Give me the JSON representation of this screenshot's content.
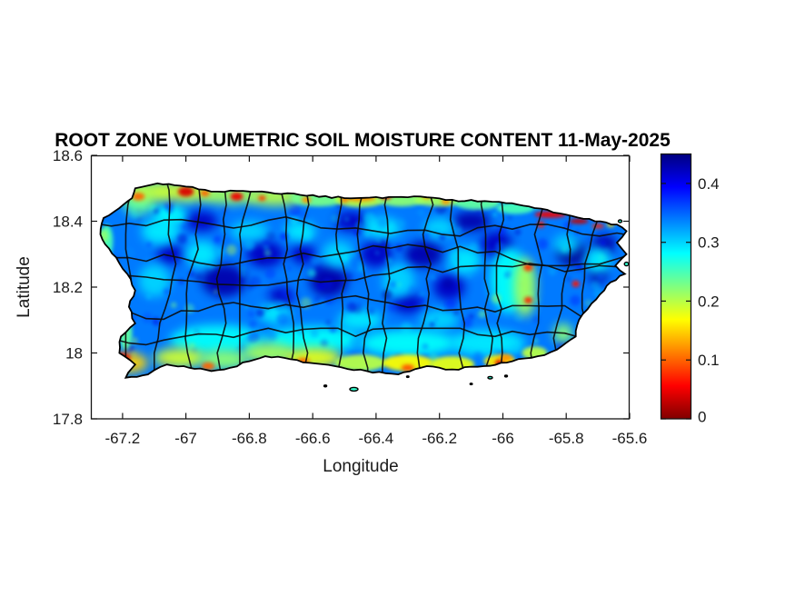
{
  "figure": {
    "background": "#ffffff",
    "text_color": "#1a1a1a",
    "axis_color": "#151515"
  },
  "chart_data": {
    "type": "heatmap",
    "title": "ROOT ZONE VOLUMETRIC SOIL MOISTURE CONTENT 11-May-2025",
    "date_shown": "11-May-2025",
    "xlabel": "Longitude",
    "ylabel": "Latitude",
    "xlim": [
      -67.3,
      -65.6
    ],
    "ylim": [
      17.8,
      18.6
    ],
    "x_ticks": [
      -67.2,
      -67.0,
      -66.8,
      -66.6,
      -66.4,
      -66.2,
      -66.0,
      -65.8,
      -65.6
    ],
    "x_tick_labels": [
      "-67.2",
      "-67",
      "-66.8",
      "-66.6",
      "-66.4",
      "-66.2",
      "-66",
      "-65.8",
      "-65.6"
    ],
    "y_ticks": [
      18.6,
      18.4,
      18.2,
      18.0,
      17.8
    ],
    "y_tick_labels": [
      "18.6",
      "18.4",
      "18.2",
      "18",
      "17.8"
    ],
    "grid": false,
    "legend": "colorbar-right",
    "colorbar": {
      "min": 0,
      "max": 0.45,
      "ticks": [
        0.4,
        0.3,
        0.2,
        0.1,
        0
      ],
      "tick_labels": [
        "0.4",
        "0.3",
        "0.2",
        "0.1",
        "0"
      ],
      "colormap": "jet-reversed (high=dark blue, low=dark red)",
      "stops_top_to_bottom": [
        {
          "offset": 0.0,
          "color": "#000080"
        },
        {
          "offset": 0.125,
          "color": "#0000ff"
        },
        {
          "offset": 0.375,
          "color": "#00ffff"
        },
        {
          "offset": 0.625,
          "color": "#ffff00"
        },
        {
          "offset": 0.875,
          "color": "#ff0000"
        },
        {
          "offset": 1.0,
          "color": "#800000"
        }
      ]
    },
    "map": {
      "region": "Puerto Rico with municipality boundaries",
      "value_summary": "interior 0.30-0.45 (blue), north/south coastal bands 0.15-0.25 (green-yellow), dry hotspots 0.02-0.12 (orange-red) on NW/N coast, NE coast strip, SW corner and S coast",
      "base_value": 0.34,
      "outline": [
        [
          -67.27,
          18.36
        ],
        [
          -67.26,
          18.41
        ],
        [
          -67.21,
          18.44
        ],
        [
          -67.17,
          18.47
        ],
        [
          -67.16,
          18.5
        ],
        [
          -67.09,
          18.515
        ],
        [
          -67.0,
          18.505
        ],
        [
          -66.9,
          18.49
        ],
        [
          -66.78,
          18.49
        ],
        [
          -66.64,
          18.48
        ],
        [
          -66.5,
          18.47
        ],
        [
          -66.38,
          18.47
        ],
        [
          -66.26,
          18.475
        ],
        [
          -66.16,
          18.465
        ],
        [
          -66.08,
          18.46
        ],
        [
          -65.99,
          18.455
        ],
        [
          -65.9,
          18.44
        ],
        [
          -65.8,
          18.42
        ],
        [
          -65.71,
          18.4
        ],
        [
          -65.64,
          18.39
        ],
        [
          -65.61,
          18.37
        ],
        [
          -65.64,
          18.335
        ],
        [
          -65.61,
          18.3
        ],
        [
          -65.645,
          18.265
        ],
        [
          -65.615,
          18.24
        ],
        [
          -65.66,
          18.215
        ],
        [
          -65.68,
          18.19
        ],
        [
          -65.72,
          18.15
        ],
        [
          -65.76,
          18.1
        ],
        [
          -65.77,
          18.05
        ],
        [
          -65.83,
          18.01
        ],
        [
          -65.89,
          17.99
        ],
        [
          -65.97,
          17.975
        ],
        [
          -66.06,
          17.96
        ],
        [
          -66.16,
          17.95
        ],
        [
          -66.24,
          17.96
        ],
        [
          -66.33,
          17.935
        ],
        [
          -66.43,
          17.945
        ],
        [
          -66.53,
          17.96
        ],
        [
          -66.61,
          17.97
        ],
        [
          -66.69,
          17.985
        ],
        [
          -66.75,
          17.99
        ],
        [
          -66.8,
          17.975
        ],
        [
          -66.86,
          17.955
        ],
        [
          -66.92,
          17.945
        ],
        [
          -66.99,
          17.955
        ],
        [
          -67.06,
          17.965
        ],
        [
          -67.12,
          17.935
        ],
        [
          -67.19,
          17.925
        ],
        [
          -67.16,
          17.965
        ],
        [
          -67.21,
          18.0
        ],
        [
          -67.205,
          18.05
        ],
        [
          -67.16,
          18.09
        ],
        [
          -67.18,
          18.14
        ],
        [
          -67.16,
          18.19
        ],
        [
          -67.185,
          18.24
        ],
        [
          -67.22,
          18.29
        ],
        [
          -67.255,
          18.33
        ]
      ],
      "islets": [
        [
          -66.47,
          17.89,
          9,
          4
        ],
        [
          -66.56,
          17.9,
          3,
          2
        ],
        [
          -66.04,
          17.925,
          5,
          2.5
        ],
        [
          -65.99,
          17.93,
          3,
          2
        ],
        [
          -66.1,
          17.906,
          2.5,
          1.5
        ],
        [
          -65.63,
          18.4,
          4,
          3
        ],
        [
          -65.61,
          18.27,
          4.5,
          4
        ],
        [
          -66.3,
          17.928,
          2.5,
          1.5
        ]
      ],
      "features": [
        [
          -66.88,
          18.22,
          0.07,
          0.05,
          0.43
        ],
        [
          -66.75,
          18.3,
          0.06,
          0.04,
          0.42
        ],
        [
          -66.55,
          18.22,
          0.06,
          0.05,
          0.43
        ],
        [
          -66.4,
          18.3,
          0.05,
          0.04,
          0.42
        ],
        [
          -66.25,
          18.3,
          0.06,
          0.04,
          0.43
        ],
        [
          -66.48,
          18.4,
          0.05,
          0.03,
          0.42
        ],
        [
          -66.1,
          18.4,
          0.06,
          0.03,
          0.43
        ],
        [
          -66.02,
          18.33,
          0.05,
          0.04,
          0.42
        ],
        [
          -65.78,
          18.3,
          0.05,
          0.035,
          0.44
        ],
        [
          -65.68,
          18.33,
          0.04,
          0.03,
          0.43
        ],
        [
          -66.95,
          18.4,
          0.05,
          0.03,
          0.42
        ],
        [
          -67.05,
          18.3,
          0.04,
          0.03,
          0.42
        ],
        [
          -66.63,
          18.3,
          0.04,
          0.03,
          0.42
        ],
        [
          -65.7,
          18.24,
          0.03,
          0.03,
          0.43
        ],
        [
          -66.17,
          18.2,
          0.05,
          0.04,
          0.42
        ],
        [
          -66.3,
          18.15,
          0.05,
          0.03,
          0.42
        ],
        [
          -66.7,
          18.17,
          0.04,
          0.03,
          0.42
        ],
        [
          -67.08,
          18.37,
          0.06,
          0.04,
          0.29
        ],
        [
          -67.05,
          18.42,
          0.05,
          0.03,
          0.28
        ],
        [
          -67.1,
          18.22,
          0.05,
          0.05,
          0.3
        ],
        [
          -66.95,
          18.3,
          0.05,
          0.04,
          0.29
        ],
        [
          -66.8,
          18.37,
          0.06,
          0.03,
          0.3
        ],
        [
          -66.64,
          18.37,
          0.05,
          0.03,
          0.29
        ],
        [
          -66.52,
          18.3,
          0.05,
          0.04,
          0.3
        ],
        [
          -66.38,
          18.38,
          0.06,
          0.03,
          0.29
        ],
        [
          -66.2,
          18.38,
          0.05,
          0.03,
          0.3
        ],
        [
          -66.33,
          18.22,
          0.05,
          0.05,
          0.3
        ],
        [
          -66.12,
          18.28,
          0.05,
          0.04,
          0.29
        ],
        [
          -66.45,
          18.1,
          0.07,
          0.03,
          0.29
        ],
        [
          -66.2,
          18.1,
          0.06,
          0.03,
          0.3
        ],
        [
          -66.72,
          18.12,
          0.05,
          0.03,
          0.29
        ],
        [
          -65.8,
          18.33,
          0.04,
          0.03,
          0.3
        ],
        [
          -65.7,
          18.28,
          0.04,
          0.04,
          0.29
        ],
        [
          -65.98,
          18.22,
          0.06,
          0.1,
          0.28
        ],
        [
          -66.9,
          18.04,
          0.15,
          0.045,
          0.28
        ],
        [
          -66.6,
          18.04,
          0.15,
          0.04,
          0.28
        ],
        [
          -66.3,
          18.03,
          0.15,
          0.04,
          0.28
        ],
        [
          -66.05,
          18.03,
          0.12,
          0.04,
          0.29
        ],
        [
          -67.25,
          18.34,
          0.02,
          0.05,
          0.25
        ],
        [
          -67.22,
          18.18,
          0.015,
          0.08,
          0.26
        ],
        [
          -67.19,
          18.06,
          0.02,
          0.05,
          0.24
        ],
        [
          -67.26,
          18.355,
          0.015,
          0.02,
          0.22
        ],
        [
          -67.15,
          18.46,
          0.05,
          0.04,
          0.24
        ],
        [
          -67.12,
          18.49,
          0.07,
          0.03,
          0.2
        ],
        [
          -67.0,
          18.49,
          0.1,
          0.03,
          0.19
        ],
        [
          -66.86,
          18.48,
          0.09,
          0.028,
          0.21
        ],
        [
          -66.72,
          18.475,
          0.09,
          0.028,
          0.2
        ],
        [
          -66.58,
          18.47,
          0.09,
          0.025,
          0.23
        ],
        [
          -66.45,
          18.468,
          0.08,
          0.025,
          0.2
        ],
        [
          -66.32,
          18.47,
          0.08,
          0.025,
          0.22
        ],
        [
          -66.2,
          18.465,
          0.08,
          0.02,
          0.21
        ],
        [
          -66.08,
          18.455,
          0.07,
          0.02,
          0.24
        ],
        [
          -65.96,
          18.44,
          0.06,
          0.018,
          0.25
        ],
        [
          -67.18,
          17.97,
          0.06,
          0.03,
          0.15
        ],
        [
          -67.02,
          17.985,
          0.08,
          0.03,
          0.19
        ],
        [
          -66.88,
          17.98,
          0.08,
          0.03,
          0.22
        ],
        [
          -66.74,
          18.0,
          0.08,
          0.03,
          0.21
        ],
        [
          -66.6,
          17.985,
          0.09,
          0.03,
          0.18
        ],
        [
          -66.45,
          17.97,
          0.08,
          0.025,
          0.2
        ],
        [
          -66.3,
          17.97,
          0.08,
          0.025,
          0.17
        ],
        [
          -66.16,
          17.965,
          0.07,
          0.025,
          0.18
        ],
        [
          -66.01,
          17.975,
          0.05,
          0.02,
          0.16
        ],
        [
          -65.9,
          18.0,
          0.04,
          0.02,
          0.2
        ],
        [
          -65.81,
          18.06,
          0.03,
          0.03,
          0.22
        ],
        [
          -65.93,
          18.2,
          0.035,
          0.09,
          0.21
        ],
        [
          -67.15,
          18.475,
          0.02,
          0.012,
          0.1
        ],
        [
          -67.0,
          18.49,
          0.025,
          0.015,
          0.04
        ],
        [
          -66.94,
          18.485,
          0.015,
          0.01,
          0.1
        ],
        [
          -66.84,
          18.475,
          0.02,
          0.013,
          0.05
        ],
        [
          -66.76,
          18.47,
          0.012,
          0.008,
          0.08
        ],
        [
          -66.62,
          18.465,
          0.015,
          0.01,
          0.12
        ],
        [
          -66.5,
          18.465,
          0.012,
          0.008,
          0.1
        ],
        [
          -66.45,
          18.472,
          0.05,
          0.012,
          0.12
        ],
        [
          -66.37,
          18.478,
          0.02,
          0.012,
          0.05
        ],
        [
          -66.24,
          18.475,
          0.015,
          0.008,
          0.13
        ],
        [
          -66.18,
          18.46,
          0.015,
          0.009,
          0.12
        ],
        [
          -65.85,
          18.42,
          0.05,
          0.01,
          0.05
        ],
        [
          -65.76,
          18.4,
          0.03,
          0.008,
          0.03
        ],
        [
          -65.7,
          18.385,
          0.02,
          0.007,
          0.07
        ],
        [
          -65.66,
          18.39,
          0.012,
          0.008,
          0.15
        ],
        [
          -65.88,
          18.39,
          0.012,
          0.01,
          0.07
        ],
        [
          -65.92,
          18.26,
          0.015,
          0.012,
          0.08
        ],
        [
          -65.92,
          18.16,
          0.013,
          0.01,
          0.07
        ],
        [
          -65.77,
          18.21,
          0.012,
          0.01,
          0.06
        ],
        [
          -65.63,
          18.21,
          0.01,
          0.008,
          0.1
        ],
        [
          -65.62,
          18.33,
          0.008,
          0.006,
          0.08
        ],
        [
          -67.21,
          17.985,
          0.035,
          0.015,
          0.05
        ],
        [
          -67.22,
          17.985,
          0.015,
          0.008,
          0.02
        ],
        [
          -66.93,
          17.96,
          0.02,
          0.012,
          0.1
        ],
        [
          -66.63,
          17.975,
          0.02,
          0.01,
          0.1
        ],
        [
          -66.3,
          17.955,
          0.02,
          0.01,
          0.09
        ],
        [
          -66.01,
          17.97,
          0.015,
          0.01,
          0.04
        ],
        [
          -65.99,
          17.985,
          0.02,
          0.01,
          0.12
        ]
      ],
      "boundaries": {
        "style": "municipality",
        "vertical_lons": [
          -67.15,
          -67.06,
          -66.97,
          -66.88,
          -66.79,
          -66.7,
          -66.61,
          -66.52,
          -66.43,
          -66.34,
          -66.25,
          -66.16,
          -66.07,
          -65.98,
          -65.89,
          -65.8,
          -65.71
        ],
        "horizontal_lats": [
          18.4,
          18.31,
          18.22,
          18.13,
          18.03
        ]
      },
      "noise": {
        "seed": 1337,
        "speckle_count": 260
      }
    }
  }
}
